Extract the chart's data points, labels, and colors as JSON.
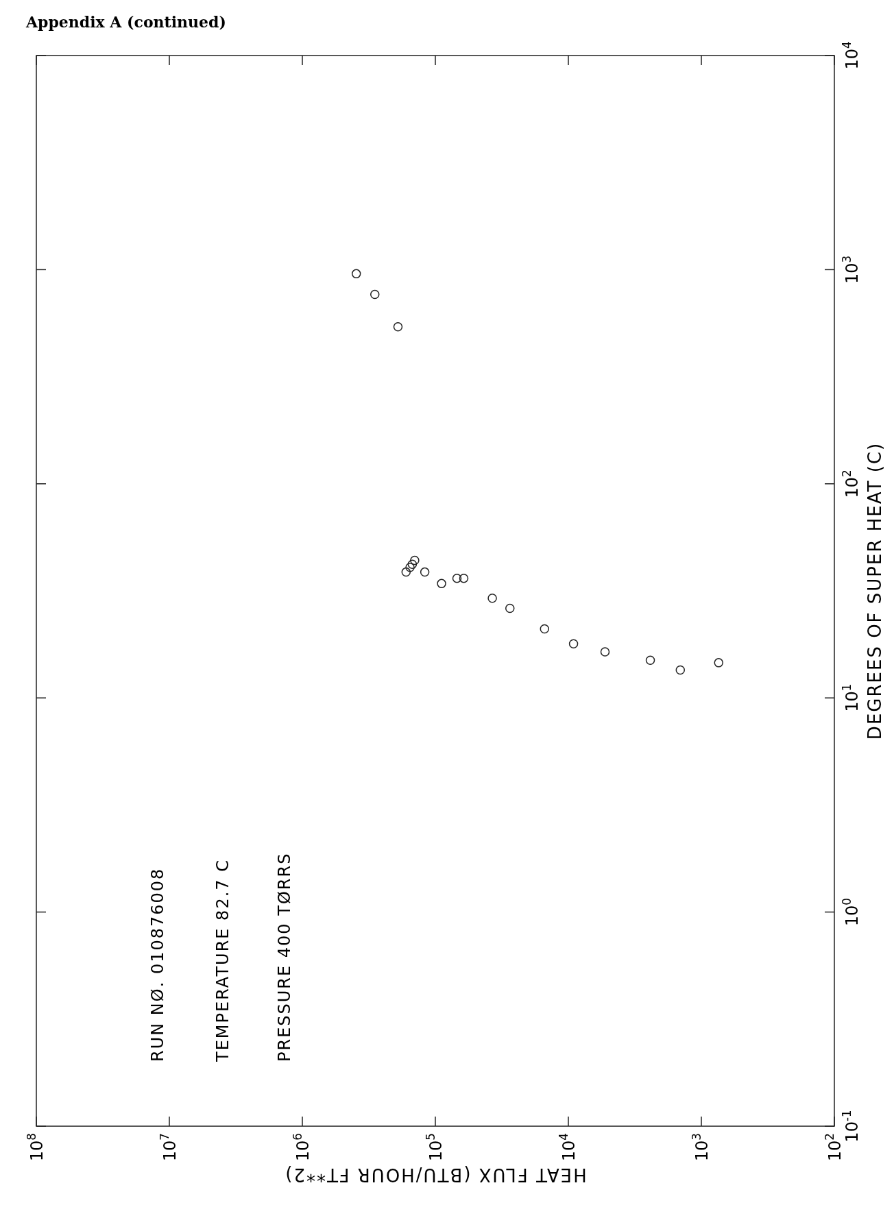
{
  "chart_data": {
    "type": "scatter",
    "title": "Appendix A (continued)",
    "xlabel": "HEAT FLUX (BTU/HOUR FT**2)",
    "ylabel": "DEGREES OF SUPER HEAT (C)",
    "annotations": [
      "RUN NØ.     010876008",
      "TEMPERATURE 82.7 C",
      "PRESSURE 400 TØRRS"
    ],
    "log": "xy",
    "marker": "circle",
    "xlim": [
      100000000,
      100
    ],
    "ylim": [
      0.1,
      10000
    ],
    "xticks": [
      {
        "value": 100000000,
        "label": "10$^{8}$"
      },
      {
        "value": 10000000,
        "label": "10$^{7}$"
      },
      {
        "value": 1000000,
        "label": "10$^{6}$"
      },
      {
        "value": 100000,
        "label": "10$^{5}$"
      },
      {
        "value": 10000,
        "label": "10$^{4}$"
      },
      {
        "value": 1000,
        "label": "10$^{3}$"
      },
      {
        "value": 100,
        "label": "10$^{2}$"
      }
    ],
    "yticks": [
      {
        "value": 0.1,
        "label": "10$^{-1}$"
      },
      {
        "value": 1,
        "label": "10$^{0}$"
      },
      {
        "value": 10,
        "label": "10$^{1}$"
      },
      {
        "value": 100,
        "label": "10$^{2}$"
      },
      {
        "value": 1000,
        "label": "10$^{3}$"
      },
      {
        "value": 10000,
        "label": "10$^{4}$"
      }
    ],
    "series": [
      {
        "color": "#222222",
        "x": [
          393000,
          285000,
          191000,
          166000,
          155000,
          149000,
          143000,
          120000,
          89800,
          68800,
          61100,
          37300,
          27500,
          15100,
          9140,
          5300,
          2420,
          1440,
          741
        ],
        "values": [
          957,
          766,
          541,
          38.7,
          40.7,
          42.1,
          43.9,
          38.7,
          34.2,
          36.2,
          36.2,
          29.2,
          26.2,
          21.0,
          17.9,
          16.4,
          15.0,
          13.5,
          14.6
        ]
      }
    ]
  }
}
